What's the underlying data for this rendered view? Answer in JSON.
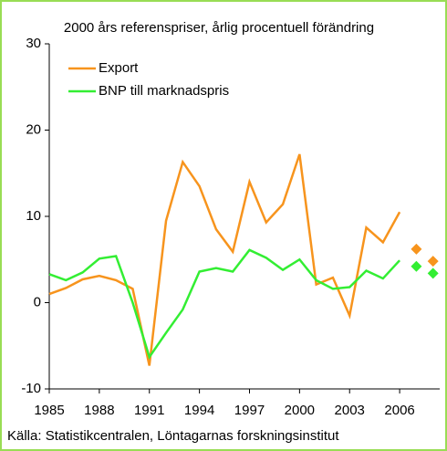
{
  "chart_data": {
    "type": "line",
    "title": "2000 års referenspriser, årlig procentuell förändring",
    "source": "Källa: Statistikcentralen, Löntagarnas forskningsinstitut",
    "x": [
      1985,
      1986,
      1987,
      1988,
      1989,
      1990,
      1991,
      1992,
      1993,
      1994,
      1995,
      1996,
      1997,
      1998,
      1999,
      2000,
      2001,
      2002,
      2003,
      2004,
      2005,
      2006
    ],
    "forecast_x": [
      2007,
      2008
    ],
    "series": [
      {
        "name": "Export",
        "color": "#f7941d",
        "values": [
          1.0,
          1.7,
          2.7,
          3.1,
          2.6,
          1.6,
          -7.3,
          9.5,
          16.3,
          13.5,
          8.5,
          5.9,
          14.0,
          9.3,
          11.4,
          17.2,
          2.1,
          2.9,
          -1.5,
          8.7,
          7.0,
          10.5
        ],
        "forecast": [
          6.2,
          4.8
        ]
      },
      {
        "name": "BNP till marknadspris",
        "color": "#33ee33",
        "values": [
          3.3,
          2.6,
          3.5,
          5.1,
          5.4,
          0.0,
          -6.3,
          -3.5,
          -0.8,
          3.6,
          4.0,
          3.6,
          6.1,
          5.2,
          3.8,
          5.0,
          2.6,
          1.6,
          1.8,
          3.7,
          2.8,
          4.9
        ],
        "forecast": [
          4.2,
          3.4
        ]
      }
    ],
    "xlim": [
      1985,
      2008.4
    ],
    "xticks": [
      1985,
      1988,
      1991,
      1994,
      1997,
      2000,
      2003,
      2006
    ],
    "ylim": [
      -10,
      30
    ],
    "yticks": [
      -10,
      0,
      10,
      20,
      30
    ],
    "legend": "upper left"
  }
}
